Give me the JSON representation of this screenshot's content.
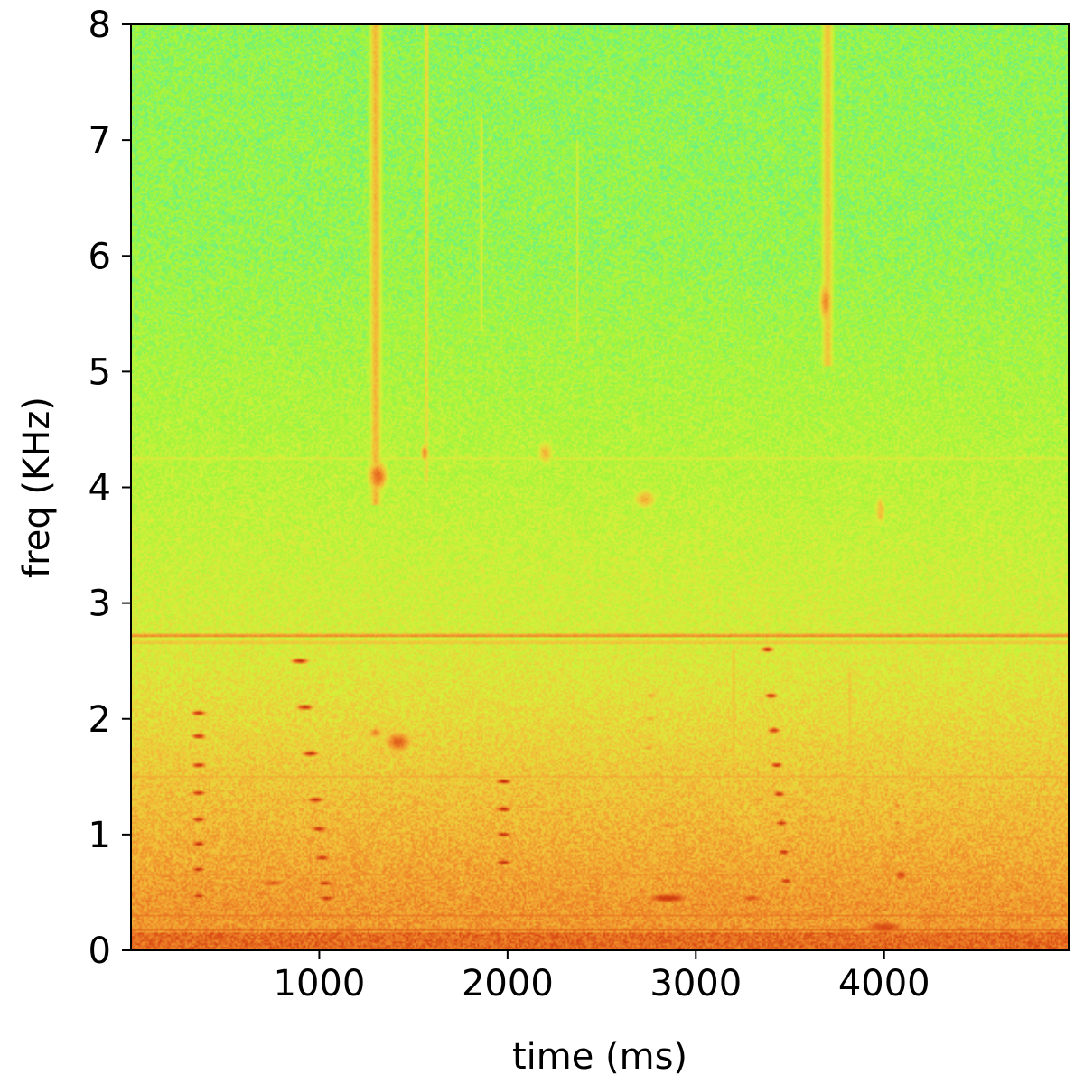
{
  "chart_data": {
    "type": "heatmap",
    "subtype": "spectrogram",
    "title": "",
    "xlabel": "time (ms)",
    "ylabel": "freq (KHz)",
    "xlim": [
      0,
      4980
    ],
    "ylim": [
      0,
      8
    ],
    "x_ticks": [
      1000,
      2000,
      3000,
      4000
    ],
    "y_ticks": [
      0,
      1,
      2,
      3,
      4,
      5,
      6,
      7,
      8
    ],
    "grid": false,
    "colormap": [
      "#19d2e6",
      "#3ff0c0",
      "#9ff53a",
      "#d8f03a",
      "#f2c43a",
      "#f08a2a",
      "#d84612",
      "#a81e08"
    ],
    "intensity_scale": "relative 0..1",
    "features": {
      "background": [
        {
          "freq_khz": 0.4,
          "level": 0.68
        },
        {
          "freq_khz": 1.5,
          "level": 0.56
        },
        {
          "freq_khz": 2.6,
          "level": 0.44
        },
        {
          "freq_khz": 4.0,
          "level": 0.36
        },
        {
          "freq_khz": 6.0,
          "level": 0.28
        },
        {
          "freq_khz": 8.0,
          "level": 0.27
        }
      ],
      "horizontal_lines": [
        {
          "freq_khz": 2.72,
          "level": 0.74
        },
        {
          "freq_khz": 2.66,
          "level": 0.6
        },
        {
          "freq_khz": 0.18,
          "level": 0.82
        },
        {
          "freq_khz": 0.3,
          "level": 0.74
        },
        {
          "freq_khz": 0.65,
          "level": 0.68
        },
        {
          "freq_khz": 1.5,
          "level": 0.62
        },
        {
          "freq_khz": 4.25,
          "level": 0.46
        }
      ],
      "vertical_streaks": [
        {
          "time_ms": 1300,
          "width_ms": 90,
          "f_from_khz": 3.9,
          "f_to_khz": 8.0,
          "level": 0.6
        },
        {
          "time_ms": 1570,
          "width_ms": 35,
          "f_from_khz": 4.1,
          "f_to_khz": 8.0,
          "level": 0.52
        },
        {
          "time_ms": 1860,
          "width_ms": 25,
          "f_from_khz": 5.4,
          "f_to_khz": 7.2,
          "level": 0.45
        },
        {
          "time_ms": 2370,
          "width_ms": 25,
          "f_from_khz": 5.3,
          "f_to_khz": 7.0,
          "level": 0.44
        },
        {
          "time_ms": 3700,
          "width_ms": 90,
          "f_from_khz": 5.1,
          "f_to_khz": 8.0,
          "level": 0.56
        },
        {
          "time_ms": 3200,
          "width_ms": 30,
          "f_from_khz": 1.3,
          "f_to_khz": 2.6,
          "level": 0.6
        },
        {
          "time_ms": 3820,
          "width_ms": 30,
          "f_from_khz": 1.6,
          "f_to_khz": 2.4,
          "level": 0.6
        }
      ],
      "blobs": [
        {
          "time_ms": 1310,
          "freq_khz": 4.1,
          "dt_ms": 70,
          "df_khz": 0.18,
          "level": 0.78
        },
        {
          "time_ms": 1560,
          "freq_khz": 4.3,
          "dt_ms": 30,
          "df_khz": 0.1,
          "level": 0.72
        },
        {
          "time_ms": 1420,
          "freq_khz": 1.8,
          "dt_ms": 110,
          "df_khz": 0.14,
          "level": 0.8
        },
        {
          "time_ms": 1300,
          "freq_khz": 1.88,
          "dt_ms": 60,
          "df_khz": 0.08,
          "level": 0.72
        },
        {
          "time_ms": 3690,
          "freq_khz": 5.6,
          "dt_ms": 45,
          "df_khz": 0.25,
          "level": 0.72
        },
        {
          "time_ms": 2730,
          "freq_khz": 3.9,
          "dt_ms": 90,
          "df_khz": 0.12,
          "level": 0.62
        },
        {
          "time_ms": 2200,
          "freq_khz": 4.3,
          "dt_ms": 60,
          "df_khz": 0.15,
          "level": 0.6
        },
        {
          "time_ms": 3980,
          "freq_khz": 3.8,
          "dt_ms": 40,
          "df_khz": 0.2,
          "level": 0.6
        },
        {
          "time_ms": 2460,
          "freq_khz": 0.45,
          "dt_ms": 140,
          "df_khz": 0.06,
          "level": 0.72
        },
        {
          "time_ms": 2850,
          "freq_khz": 0.45,
          "dt_ms": 200,
          "df_khz": 0.07,
          "level": 0.9
        },
        {
          "time_ms": 3300,
          "freq_khz": 0.45,
          "dt_ms": 120,
          "df_khz": 0.06,
          "level": 0.82
        },
        {
          "time_ms": 4090,
          "freq_khz": 0.65,
          "dt_ms": 60,
          "df_khz": 0.08,
          "level": 0.85
        },
        {
          "time_ms": 750,
          "freq_khz": 0.58,
          "dt_ms": 140,
          "df_khz": 0.05,
          "level": 0.82
        },
        {
          "time_ms": 4000,
          "freq_khz": 0.2,
          "dt_ms": 200,
          "df_khz": 0.1,
          "level": 0.86
        },
        {
          "time_ms": 1820,
          "freq_khz": 0.45,
          "dt_ms": 120,
          "df_khz": 0.05,
          "level": 0.72
        },
        {
          "time_ms": 2850,
          "freq_khz": 1.08,
          "dt_ms": 100,
          "df_khz": 0.05,
          "level": 0.72
        }
      ],
      "harmonic_stacks": [
        {
          "time_ms": 360,
          "width_ms": 120,
          "harmonics_khz": [
            0.47,
            0.7,
            0.92,
            1.13,
            1.36,
            1.6,
            1.85,
            2.05
          ],
          "level": 0.92,
          "slope_ms_per_khz": 0
        },
        {
          "time_ms": 1980,
          "width_ms": 130,
          "harmonics_khz": [
            0.76,
            1.0,
            1.22,
            1.46
          ],
          "level": 0.94,
          "slope_ms_per_khz": 0
        },
        {
          "time_ms": 1040,
          "width_ms": 140,
          "harmonics_khz": [
            0.45,
            0.58,
            0.8,
            1.05,
            1.3,
            1.7,
            2.1,
            2.5
          ],
          "level": 0.92,
          "slope_ms_per_khz": -70
        },
        {
          "time_ms": 3480,
          "width_ms": 100,
          "harmonics_khz": [
            0.6,
            0.85,
            1.1,
            1.35,
            1.6,
            1.9,
            2.2,
            2.6
          ],
          "level": 0.92,
          "slope_ms_per_khz": -50
        },
        {
          "time_ms": 2700,
          "width_ms": 110,
          "harmonics_khz": [
            0.6,
            0.85,
            1.4,
            1.75,
            2.0,
            2.2
          ],
          "level": 0.66,
          "slope_ms_per_khz": 40
        },
        {
          "time_ms": 4070,
          "width_ms": 70,
          "harmonics_khz": [
            0.65,
            0.9,
            1.1,
            1.25
          ],
          "level": 0.76,
          "slope_ms_per_khz": 0
        },
        {
          "time_ms": 3850,
          "width_ms": 90,
          "harmonics_khz": [
            0.5,
            0.7,
            0.85
          ],
          "level": 0.72,
          "slope_ms_per_khz": 0
        },
        {
          "time_ms": 3340,
          "width_ms": 60,
          "harmonics_khz": [
            0.6,
            0.8,
            1.3
          ],
          "level": 0.72,
          "slope_ms_per_khz": 0
        },
        {
          "time_ms": 2330,
          "width_ms": 60,
          "harmonics_khz": [
            1.55,
            1.8,
            2.0
          ],
          "level": 0.56,
          "slope_ms_per_khz": 0
        }
      ]
    }
  }
}
